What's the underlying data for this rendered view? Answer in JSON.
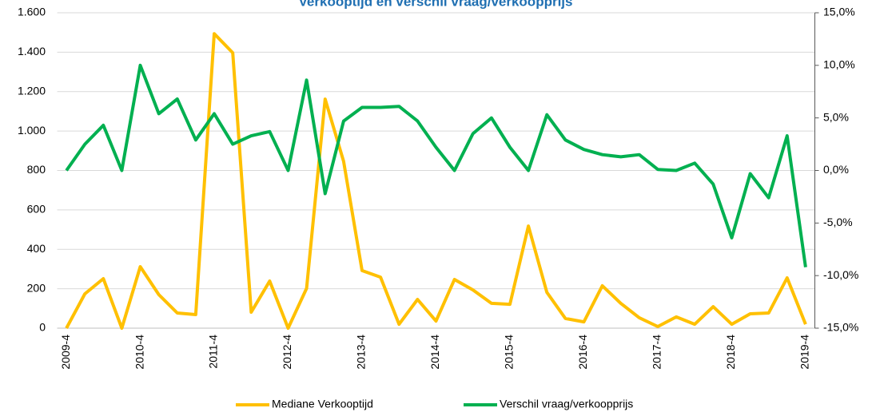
{
  "chart_data": {
    "type": "line",
    "title": "Verkooptijd en verschil vraag/verkoopprijs",
    "categories": [
      "2009-4",
      null,
      null,
      null,
      "2010-4",
      null,
      null,
      null,
      "2011-4",
      null,
      null,
      null,
      "2012-4",
      null,
      null,
      null,
      "2013-4",
      null,
      null,
      null,
      "2014-4",
      null,
      null,
      null,
      "2015-4",
      null,
      null,
      null,
      "2016-4",
      null,
      null,
      null,
      "2017-4",
      null,
      null,
      null,
      "2018-4",
      null,
      null,
      null,
      "2019-4"
    ],
    "series": [
      {
        "name": "Mediane Verkooptijd",
        "color": "#ffc000",
        "values": [
          0,
          174,
          251,
          0,
          312,
          170,
          77,
          69,
          1494,
          1397,
          81,
          239,
          0,
          202,
          1162,
          846,
          292,
          259,
          20,
          146,
          36,
          247,
          194,
          126,
          121,
          518,
          182,
          49,
          32,
          215,
          126,
          53,
          8,
          57,
          20,
          109,
          20,
          73,
          77,
          255,
          20
        ]
      },
      {
        "name": "Verschil vraag/verkoopprijs",
        "color": "#00b050",
        "axis": "y2",
        "values": [
          0.0,
          2.5,
          4.3,
          0.0,
          10.0,
          5.4,
          6.8,
          2.9,
          5.4,
          2.5,
          3.3,
          3.7,
          0.0,
          8.6,
          -2.2,
          4.7,
          6.0,
          6.0,
          6.1,
          4.7,
          2.2,
          0.0,
          3.5,
          5.0,
          2.2,
          0.0,
          5.3,
          2.9,
          2.0,
          1.5,
          1.3,
          1.5,
          0.1,
          0.0,
          0.7,
          -1.3,
          -6.4,
          -0.3,
          -2.6,
          3.3,
          -9.2
        ]
      }
    ],
    "ylim": [
      0,
      1600
    ],
    "yticks": [
      0,
      200,
      400,
      600,
      800,
      {
        "value": 1000,
        "label": "1.000"
      },
      {
        "value": 1200,
        "label": "1.200"
      },
      {
        "value": 1400,
        "label": "1.400"
      },
      {
        "value": 1600,
        "label": "1.600"
      }
    ],
    "y2lim": [
      -15,
      15
    ],
    "y2ticks": [
      {
        "value": -15,
        "label": "-15,0%"
      },
      {
        "value": -10,
        "label": "-10,0%"
      },
      {
        "value": -5,
        "label": "-5,0%"
      },
      {
        "value": 0,
        "label": "0,0%"
      },
      {
        "value": 5,
        "label": "5,0%"
      },
      {
        "value": 10,
        "label": "10,0%"
      },
      {
        "value": 15,
        "label": "15,0%"
      }
    ],
    "grid": true,
    "legend": "bottom"
  }
}
